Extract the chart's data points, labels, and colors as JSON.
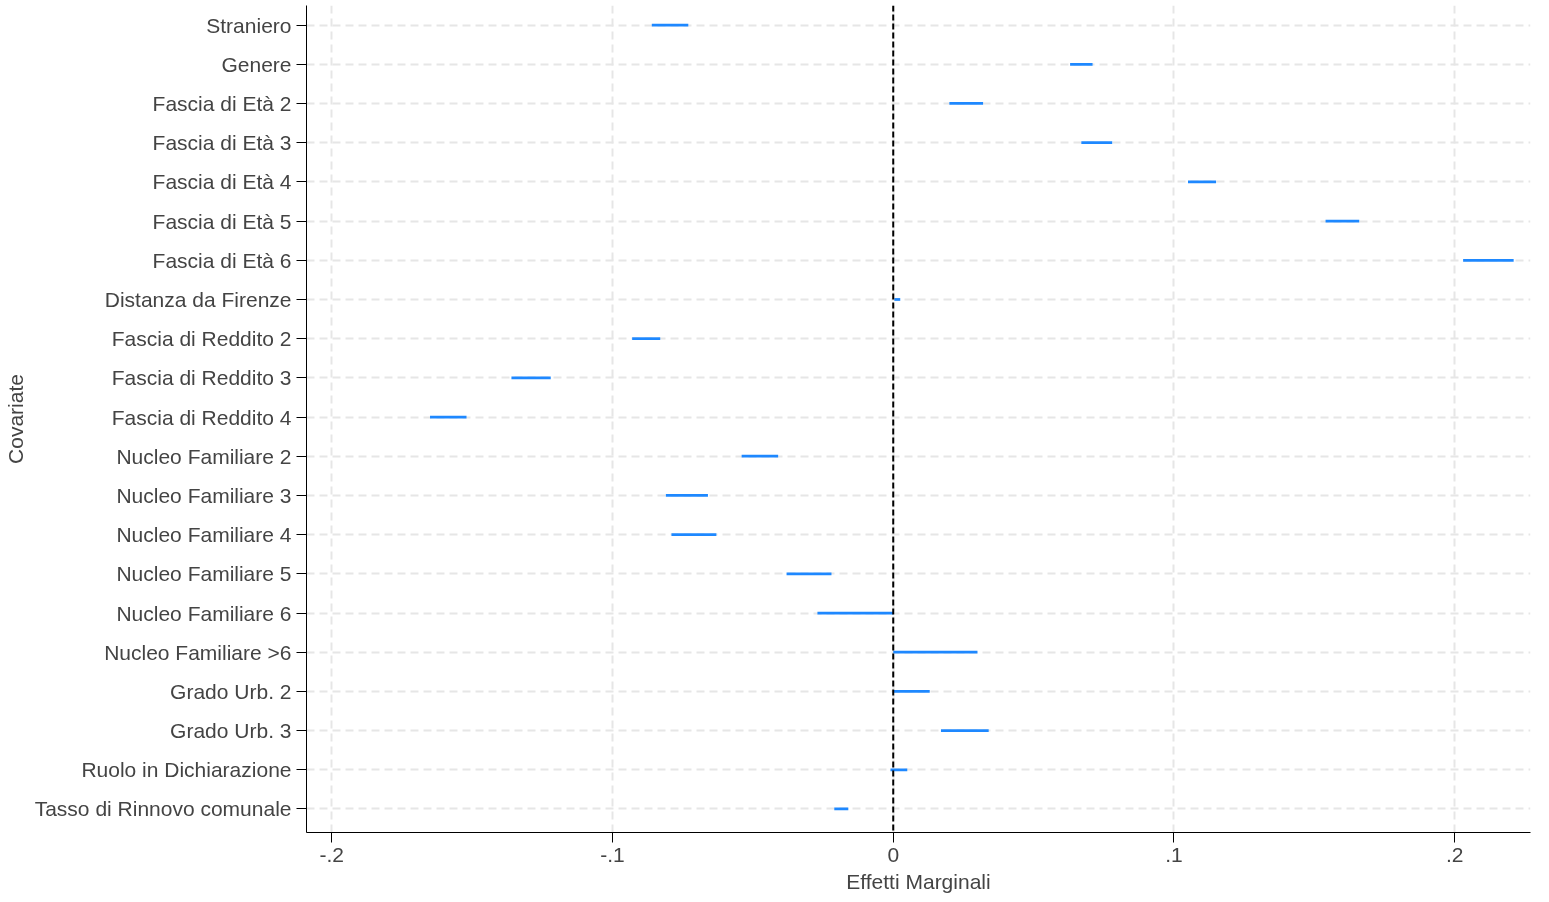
{
  "chart_data": {
    "type": "bar",
    "orientation": "horizontal",
    "xlabel": "Effetti Marginali",
    "ylabel": "Covariate",
    "categories": [
      "Straniero",
      "Genere",
      "Fascia di Età 2",
      "Fascia di Età 3",
      "Fascia di Età 4",
      "Fascia di Età 5",
      "Fascia di Età 6",
      "Distanza da Firenze",
      "Fascia di Reddito 2",
      "Fascia di Reddito 3",
      "Fascia di Reddito 4",
      "Nucleo Familiare 2",
      "Nucleo Familiare 3",
      "Nucleo Familiare 4",
      "Nucleo Familiare 5",
      "Nucleo Familiare 6",
      "Nucleo Familiare >6",
      "Grado Urb. 2",
      "Grado Urb. 3",
      "Ruolo in Dichiarazione",
      "Tasso di Rinnovo comunale"
    ],
    "base": [
      -0.086,
      0.063,
      0.02,
      0.067,
      0.105,
      0.154,
      0.203,
      0.0004,
      -0.093,
      -0.136,
      -0.165,
      -0.054,
      -0.081,
      -0.079,
      -0.038,
      -0.027,
      0.0,
      0.0,
      0.017,
      -0.001,
      -0.021
    ],
    "color": "#1e88ff",
    "values": [
      0.013,
      0.008,
      0.012,
      0.011,
      0.01,
      0.012,
      0.018,
      0.0021,
      0.01,
      0.014,
      0.013,
      0.013,
      0.015,
      0.016,
      0.016,
      0.027,
      0.03,
      0.013,
      0.017,
      0.006,
      0.005
    ],
    "xlim": [
      -0.209,
      0.227
    ],
    "xticks": [
      {
        "value": -0.2,
        "label": "-.2"
      },
      {
        "value": -0.1,
        "label": "-.1"
      },
      0,
      {
        "value": 0.1,
        "label": ".1"
      },
      {
        "value": 0.2,
        "label": ".2"
      }
    ],
    "ref_lines": [
      {
        "axis": "x",
        "value": 0,
        "color": "#000000",
        "line_style": "dashed"
      }
    ],
    "grid": true
  }
}
